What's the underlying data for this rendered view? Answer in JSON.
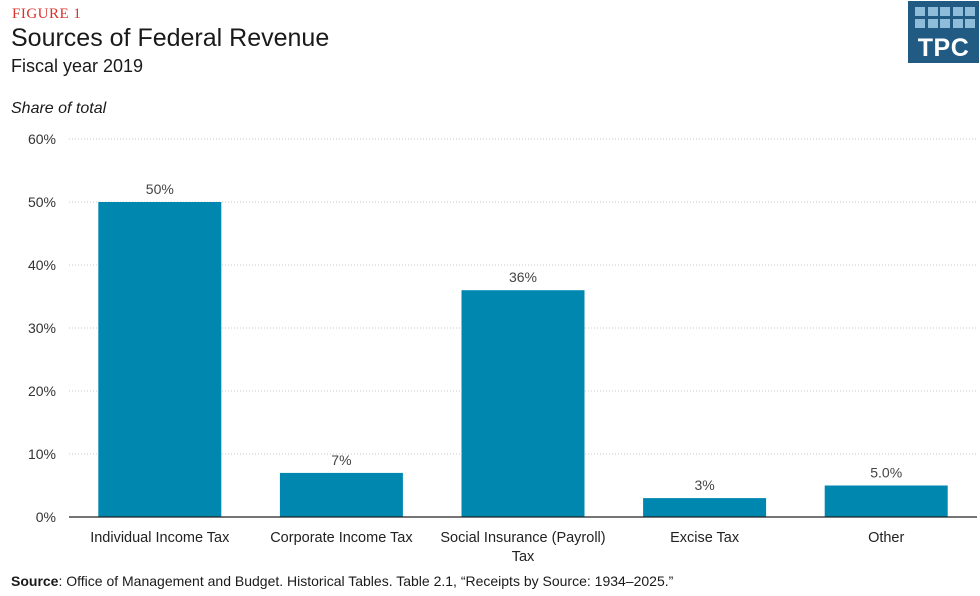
{
  "figure_label": "FIGURE 1",
  "header": {
    "title": "Sources of Federal Revenue",
    "subtitle": "Fiscal year 2019"
  },
  "logo": {
    "text": "TPC",
    "background": "#215b83"
  },
  "source": {
    "label": "Source",
    "text": ": Office of Management and Budget. Historical Tables. Table 2.1, “Receipts by Source: 1934–2025.”"
  },
  "colors": {
    "bar": "#0087b0",
    "figure_label": "#d8322b",
    "grid": "#c8c8c8"
  },
  "chart_data": {
    "type": "bar",
    "ylabel": "Share of total",
    "categories": [
      [
        "Individual Income Tax"
      ],
      [
        "Corporate Income Tax"
      ],
      [
        "Social Insurance (Payroll)",
        "Tax"
      ],
      [
        "Excise Tax"
      ],
      [
        "Other"
      ]
    ],
    "values": [
      50,
      7,
      36,
      3,
      5
    ],
    "data_labels": [
      "50%",
      "7%",
      "36%",
      "3%",
      "5.0%"
    ],
    "ylim": [
      0,
      60
    ],
    "yticks": [
      0,
      10,
      20,
      30,
      40,
      50,
      60
    ],
    "ytick_labels": [
      "0%",
      "10%",
      "20%",
      "30%",
      "40%",
      "50%",
      "60%"
    ],
    "grid": true,
    "grid_style": "dotted-horizontal"
  }
}
